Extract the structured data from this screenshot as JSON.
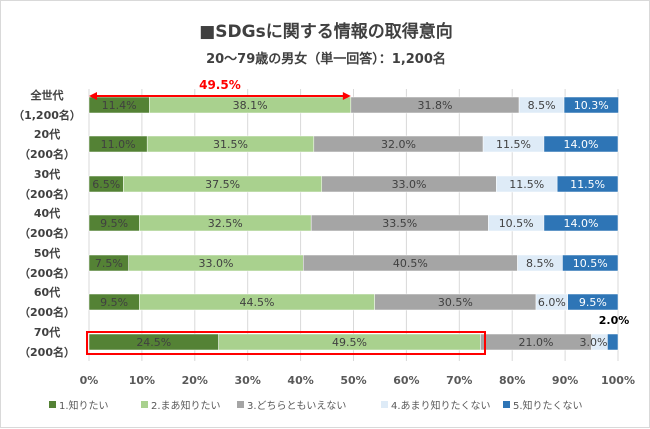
{
  "chart_data": {
    "type": "bar",
    "orientation": "horizontal",
    "stacked": true,
    "title": "■SDGsに関する情報の取得意向",
    "subtitle": "20～79歳の男女（単一回答）：1,200名",
    "categories": [
      [
        "全世代",
        "（1,200名）"
      ],
      [
        "20代",
        "（200名）"
      ],
      [
        "30代",
        "（200名）"
      ],
      [
        "40代",
        "（200名）"
      ],
      [
        "50代",
        "（200名）"
      ],
      [
        "60代",
        "（200名）"
      ],
      [
        "70代",
        "（200名）"
      ]
    ],
    "series": [
      {
        "name": "1.知りたい",
        "color": "#548235",
        "values": [
          11.4,
          11.0,
          6.5,
          9.5,
          7.5,
          9.5,
          24.5
        ]
      },
      {
        "name": "2.まあ知りたい",
        "color": "#a9d18e",
        "values": [
          38.1,
          31.5,
          37.5,
          32.5,
          33.0,
          44.5,
          49.5
        ]
      },
      {
        "name": "3.どちらともいえない",
        "color": "#a5a5a5",
        "values": [
          31.8,
          32.0,
          33.0,
          33.5,
          40.5,
          30.5,
          21.0
        ]
      },
      {
        "name": "4.あまり知りたくない",
        "color": "#deebf7",
        "values": [
          8.5,
          11.5,
          11.5,
          10.5,
          8.5,
          6.0,
          3.0
        ]
      },
      {
        "name": "5.知りたくない",
        "color": "#2e75b6",
        "values": [
          10.3,
          14.0,
          11.5,
          14.0,
          10.5,
          9.5,
          2.0
        ]
      }
    ],
    "xlim": [
      0,
      100
    ],
    "xticks": [
      "0%",
      "10%",
      "20%",
      "30%",
      "40%",
      "50%",
      "60%",
      "70%",
      "80%",
      "90%",
      "100%"
    ],
    "grid": true,
    "legend_position": "bottom",
    "annotations": {
      "arrow_label": "49.5%",
      "highlight_row": "70代",
      "accent": "#ff0000"
    }
  }
}
